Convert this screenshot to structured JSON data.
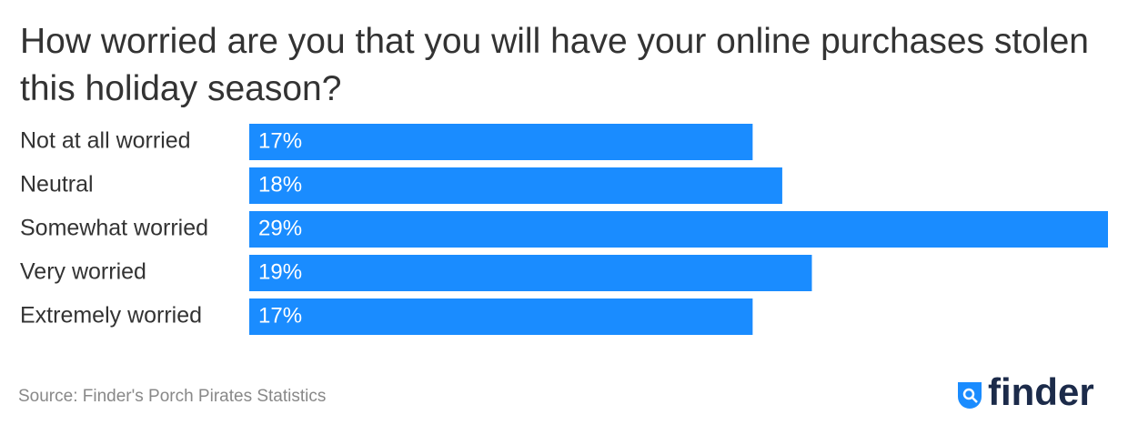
{
  "chart_data": {
    "type": "bar",
    "orientation": "horizontal",
    "title": "How worried are you that you will have your online purchases stolen this holiday season?",
    "categories": [
      "Not at all worried",
      "Neutral",
      "Somewhat worried",
      "Very worried",
      "Extremely worried"
    ],
    "values": [
      17,
      18,
      29,
      19,
      17
    ],
    "value_labels": [
      "17%",
      "18%",
      "29%",
      "19%",
      "17%"
    ],
    "color": "#1a8cff",
    "source": "Source: Finder's Porch Pirates Statistics"
  },
  "logo": "finder"
}
